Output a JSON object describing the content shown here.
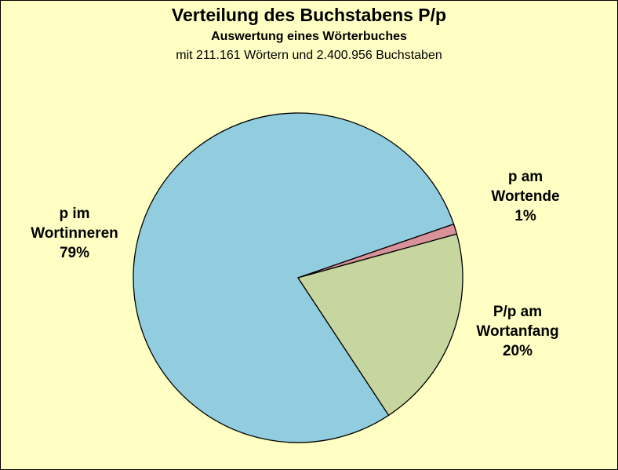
{
  "chart_data": {
    "type": "pie",
    "title": "Verteilung des Buchstabens P/p",
    "subtitle": "Auswertung eines Wörterbuches",
    "subtitle2": "mit 211.161 Wörtern und 2.400.956 Buchstaben",
    "slices": [
      {
        "label_lines": [
          "p im",
          "Wortinneren",
          "79%"
        ],
        "value": 79,
        "color": "#92cddf"
      },
      {
        "label_lines": [
          "p am",
          "Wortende",
          "1%"
        ],
        "value": 1,
        "color": "#d9919a"
      },
      {
        "label_lines": [
          "P/p am",
          "Wortanfang",
          "20%"
        ],
        "value": 20,
        "color": "#c6d69e"
      }
    ],
    "legend": "none"
  }
}
